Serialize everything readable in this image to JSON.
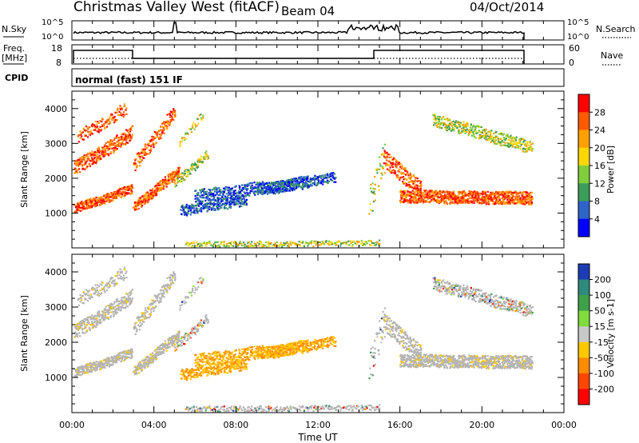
{
  "header": {
    "radar": "Christmas Valley West (fitACF)",
    "beam": "Beam 04",
    "date": "04/Oct/2014"
  },
  "strips": {
    "nsky_label": "N.Sky",
    "nsky_ticks": [
      "10^5",
      "10^0"
    ],
    "nsky_right_ticks": [
      "10^5",
      "10^0"
    ],
    "nsearch_label": "N.Search",
    "freq_label_1": "Freq.",
    "freq_label_2": "[MHz]",
    "freq_ticks": [
      "18",
      "8"
    ],
    "nave_ticks": [
      "60",
      "0"
    ],
    "nave_label": "Nave",
    "cpid_label": "CPID",
    "cpid_value": "normal (fast) 151 IF"
  },
  "chart_data": [
    {
      "type": "heatmap",
      "name": "power",
      "ylabel": "Slant Range [km]",
      "ylim": [
        0,
        4500
      ],
      "y_ticks": [
        "4000",
        "3000",
        "2000",
        "1000"
      ],
      "colorbar_label": "Power [dB]",
      "colorbar_ticks": [
        "28",
        "24",
        "20",
        "16",
        "12",
        "8",
        "4"
      ],
      "colorbar_colors": [
        "#ff0000",
        "#ff5a00",
        "#ffa000",
        "#ffd700",
        "#7fcd3c",
        "#3c9c5a",
        "#2e64c8",
        "#0000ff"
      ]
    },
    {
      "type": "heatmap",
      "name": "velocity",
      "ylabel": "Slant Range [km]",
      "ylim": [
        0,
        4500
      ],
      "y_ticks": [
        "4000",
        "3000",
        "2000",
        "1000"
      ],
      "colorbar_label": "Velocity [m s-1]",
      "colorbar_ticks": [
        "200",
        "100",
        "50",
        "15",
        "-15",
        "-50",
        "-100",
        "-200"
      ],
      "colorbar_colors": [
        "#1c3cb4",
        "#2e8a7a",
        "#3fa04a",
        "#7fdc3c",
        "#c8c8c8",
        "#ffc800",
        "#ff8c00",
        "#ff4600",
        "#ff0000"
      ]
    }
  ],
  "xaxis": {
    "label": "Time UT",
    "ticks": [
      "00:00",
      "04:00",
      "08:00",
      "12:00",
      "16:00",
      "20:00",
      "00:00"
    ]
  },
  "colors": {
    "ground_scatter": "#b4b4b4"
  }
}
